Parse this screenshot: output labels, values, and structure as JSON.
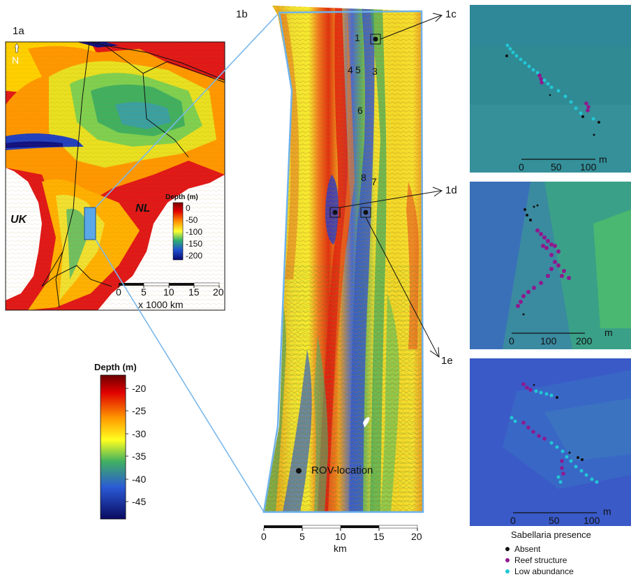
{
  "panels": {
    "p1a": {
      "label": "1a",
      "north": "N",
      "country_uk": "UK",
      "country_nl": "NL",
      "legend_title": "Depth (m)",
      "legend_ticks": [
        "0",
        "-50",
        "-100",
        "-150",
        "-200"
      ],
      "scale_ticks": [
        "0",
        "5",
        "10",
        "15",
        "20"
      ],
      "scale_unit": "x 1000 km"
    },
    "p1b": {
      "label": "1b",
      "site_numbers": [
        "1",
        "4",
        "5",
        "3",
        "6",
        "8",
        "7"
      ],
      "rov_label": "ROV-location",
      "scale_ticks": [
        "0",
        "5",
        "10",
        "15",
        "20"
      ],
      "scale_unit": "km"
    },
    "p1c": {
      "label": "1c",
      "scale_ticks": [
        "0",
        "50",
        "100"
      ],
      "scale_unit": "m"
    },
    "p1d": {
      "label": "1d",
      "scale_ticks": [
        "0",
        "100",
        "200"
      ],
      "scale_unit": "m"
    },
    "p1e": {
      "label": "1e",
      "scale_ticks": [
        "0",
        "50",
        "100"
      ],
      "scale_unit": "m"
    }
  },
  "depth_legend": {
    "title": "Depth (m)",
    "ticks": [
      "-20",
      "-25",
      "-30",
      "-35",
      "-40",
      "-45"
    ]
  },
  "sabellaria_legend": {
    "title": "Sabellaria presence",
    "items": [
      {
        "label": "Absent",
        "color": "#111111"
      },
      {
        "label": "Reef structure",
        "color": "#8e1a8e"
      },
      {
        "label": "Low abundance",
        "color": "#22c7d6"
      }
    ]
  }
}
